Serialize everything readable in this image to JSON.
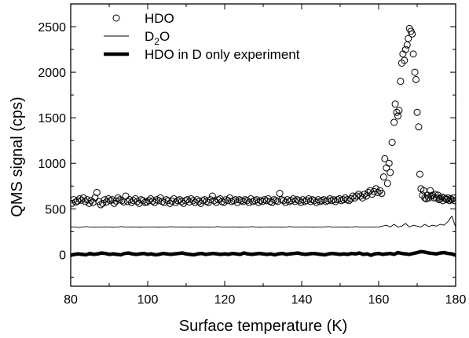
{
  "chart_data": {
    "type": "scatter",
    "xlabel": "Surface temperature (K)",
    "ylabel": "QMS signal (cps)",
    "xlim": [
      80,
      180
    ],
    "ylim": [
      -350,
      2750
    ],
    "xticks": [
      80,
      100,
      120,
      140,
      160,
      180
    ],
    "yticks": [
      0,
      500,
      1000,
      1500,
      2000,
      2500
    ],
    "grid": false,
    "legend_position": "top-left",
    "series": [
      {
        "name": "HDO",
        "name_html_parts": [
          "HDO"
        ],
        "style": "open-circles",
        "points": [
          [
            80.3,
            560
          ],
          [
            80.8,
            600
          ],
          [
            81.3,
            575
          ],
          [
            81.8,
            585
          ],
          [
            82.3,
            610
          ],
          [
            82.8,
            595
          ],
          [
            83.3,
            620
          ],
          [
            83.8,
            580
          ],
          [
            84.3,
            600
          ],
          [
            84.8,
            560
          ],
          [
            85.3,
            590
          ],
          [
            85.8,
            570
          ],
          [
            86.3,
            620
          ],
          [
            86.8,
            680
          ],
          [
            87.3,
            580
          ],
          [
            87.8,
            545
          ],
          [
            88.3,
            560
          ],
          [
            88.8,
            600
          ],
          [
            89.3,
            575
          ],
          [
            89.8,
            610
          ],
          [
            90.3,
            590
          ],
          [
            90.8,
            600
          ],
          [
            91.3,
            560
          ],
          [
            91.8,
            585
          ],
          [
            92.3,
            620
          ],
          [
            92.8,
            600
          ],
          [
            93.3,
            590
          ],
          [
            93.8,
            575
          ],
          [
            94.3,
            640
          ],
          [
            94.8,
            580
          ],
          [
            95.3,
            600
          ],
          [
            95.8,
            570
          ],
          [
            96.3,
            590
          ],
          [
            96.8,
            610
          ],
          [
            97.3,
            580
          ],
          [
            97.8,
            560
          ],
          [
            98.3,
            600
          ],
          [
            98.8,
            590
          ],
          [
            99.3,
            570
          ],
          [
            99.8,
            575
          ],
          [
            100.3,
            590
          ],
          [
            100.8,
            610
          ],
          [
            101.3,
            585
          ],
          [
            101.8,
            570
          ],
          [
            102.3,
            600
          ],
          [
            102.8,
            590
          ],
          [
            103.3,
            620
          ],
          [
            103.8,
            580
          ],
          [
            104.3,
            570
          ],
          [
            104.8,
            600
          ],
          [
            105.3,
            590
          ],
          [
            105.8,
            560
          ],
          [
            106.3,
            585
          ],
          [
            106.8,
            610
          ],
          [
            107.3,
            570
          ],
          [
            107.8,
            590
          ],
          [
            108.3,
            600
          ],
          [
            108.8,
            580
          ],
          [
            109.3,
            560
          ],
          [
            109.8,
            590
          ],
          [
            110.3,
            600
          ],
          [
            110.8,
            575
          ],
          [
            111.3,
            610
          ],
          [
            111.8,
            590
          ],
          [
            112.3,
            570
          ],
          [
            112.8,
            600
          ],
          [
            113.3,
            580
          ],
          [
            113.8,
            560
          ],
          [
            114.3,
            590
          ],
          [
            114.8,
            600
          ],
          [
            115.3,
            580
          ],
          [
            115.8,
            570
          ],
          [
            116.3,
            600
          ],
          [
            116.8,
            640
          ],
          [
            117.3,
            590
          ],
          [
            117.8,
            570
          ],
          [
            118.3,
            600
          ],
          [
            118.8,
            610
          ],
          [
            119.3,
            580
          ],
          [
            119.8,
            570
          ],
          [
            120.3,
            600
          ],
          [
            120.8,
            590
          ],
          [
            121.3,
            620
          ],
          [
            121.8,
            580
          ],
          [
            122.3,
            590
          ],
          [
            122.8,
            600
          ],
          [
            123.3,
            570
          ],
          [
            123.8,
            600
          ],
          [
            124.3,
            590
          ],
          [
            124.8,
            580
          ],
          [
            125.3,
            600
          ],
          [
            125.8,
            590
          ],
          [
            126.3,
            570
          ],
          [
            126.8,
            610
          ],
          [
            127.3,
            580
          ],
          [
            127.8,
            590
          ],
          [
            128.3,
            600
          ],
          [
            128.8,
            570
          ],
          [
            129.3,
            590
          ],
          [
            129.8,
            580
          ],
          [
            130.3,
            600
          ],
          [
            130.8,
            590
          ],
          [
            131.3,
            610
          ],
          [
            131.8,
            580
          ],
          [
            132.3,
            570
          ],
          [
            132.8,
            600
          ],
          [
            133.3,
            590
          ],
          [
            133.8,
            580
          ],
          [
            134.3,
            670
          ],
          [
            134.8,
            600
          ],
          [
            135.3,
            590
          ],
          [
            135.8,
            570
          ],
          [
            136.3,
            600
          ],
          [
            136.8,
            580
          ],
          [
            137.3,
            590
          ],
          [
            137.8,
            610
          ],
          [
            138.3,
            580
          ],
          [
            138.8,
            600
          ],
          [
            139.3,
            590
          ],
          [
            139.8,
            570
          ],
          [
            140.3,
            600
          ],
          [
            140.8,
            580
          ],
          [
            141.3,
            590
          ],
          [
            141.8,
            610
          ],
          [
            142.3,
            580
          ],
          [
            142.8,
            600
          ],
          [
            143.3,
            590
          ],
          [
            143.8,
            570
          ],
          [
            144.3,
            600
          ],
          [
            144.8,
            580
          ],
          [
            145.3,
            590
          ],
          [
            145.8,
            600
          ],
          [
            146.3,
            580
          ],
          [
            146.8,
            590
          ],
          [
            147.3,
            610
          ],
          [
            147.8,
            590
          ],
          [
            148.3,
            600
          ],
          [
            148.8,
            580
          ],
          [
            149.3,
            600
          ],
          [
            149.8,
            610
          ],
          [
            150.3,
            590
          ],
          [
            150.8,
            600
          ],
          [
            151.3,
            620
          ],
          [
            151.8,
            600
          ],
          [
            152.3,
            590
          ],
          [
            152.8,
            610
          ],
          [
            153.3,
            640
          ],
          [
            153.8,
            620
          ],
          [
            154.3,
            640
          ],
          [
            154.8,
            660
          ],
          [
            155.3,
            640
          ],
          [
            155.8,
            620
          ],
          [
            156.3,
            660
          ],
          [
            156.8,
            640
          ],
          [
            157.3,
            680
          ],
          [
            157.8,
            700
          ],
          [
            158.3,
            660
          ],
          [
            158.8,
            690
          ],
          [
            159.3,
            720
          ],
          [
            159.8,
            680
          ],
          [
            160.3,
            700
          ],
          [
            160.8,
            670
          ],
          [
            161.3,
            850
          ],
          [
            161.6,
            1050
          ],
          [
            162.0,
            950
          ],
          [
            162.3,
            780
          ],
          [
            162.7,
            1000
          ],
          [
            163.0,
            900
          ],
          [
            163.5,
            1230
          ],
          [
            164.0,
            1450
          ],
          [
            164.3,
            1650
          ],
          [
            164.7,
            1560
          ],
          [
            165.0,
            1520
          ],
          [
            165.3,
            1580
          ],
          [
            165.7,
            1900
          ],
          [
            166.0,
            2100
          ],
          [
            166.3,
            2200
          ],
          [
            166.7,
            2130
          ],
          [
            167.0,
            2250
          ],
          [
            167.4,
            2300
          ],
          [
            167.7,
            2370
          ],
          [
            168.0,
            2480
          ],
          [
            168.4,
            2450
          ],
          [
            168.7,
            2420
          ],
          [
            169.0,
            2200
          ],
          [
            169.4,
            2000
          ],
          [
            169.7,
            1920
          ],
          [
            170.0,
            1560
          ],
          [
            170.4,
            1400
          ],
          [
            170.7,
            880
          ],
          [
            171.0,
            720
          ],
          [
            171.4,
            650
          ],
          [
            171.7,
            700
          ],
          [
            172.0,
            620
          ],
          [
            172.4,
            610
          ],
          [
            172.7,
            650
          ],
          [
            173.0,
            620
          ],
          [
            173.4,
            700
          ],
          [
            173.7,
            640
          ],
          [
            174.0,
            650
          ],
          [
            174.4,
            620
          ],
          [
            174.7,
            660
          ],
          [
            175.0,
            620
          ],
          [
            175.4,
            650
          ],
          [
            175.7,
            600
          ],
          [
            176.0,
            610
          ],
          [
            176.4,
            630
          ],
          [
            176.7,
            590
          ],
          [
            177.0,
            620
          ],
          [
            177.4,
            610
          ],
          [
            177.7,
            600
          ],
          [
            178.0,
            620
          ],
          [
            178.4,
            590
          ],
          [
            178.7,
            610
          ],
          [
            179.0,
            600
          ],
          [
            179.4,
            620
          ],
          [
            179.7,
            590
          ]
        ]
      },
      {
        "name": "D2O",
        "name_html_parts": [
          "D",
          "2",
          "O"
        ],
        "style": "thin-line",
        "x_start": 80,
        "x_step": 1,
        "values": [
          300,
          300,
          295,
          300,
          305,
          300,
          298,
          300,
          300,
          302,
          300,
          298,
          300,
          305,
          300,
          300,
          302,
          300,
          298,
          300,
          300,
          300,
          302,
          298,
          300,
          300,
          305,
          300,
          300,
          302,
          300,
          298,
          300,
          300,
          302,
          300,
          298,
          300,
          305,
          300,
          300,
          300,
          302,
          300,
          298,
          300,
          300,
          305,
          300,
          298,
          300,
          300,
          302,
          300,
          300,
          298,
          300,
          305,
          300,
          300,
          300,
          302,
          300,
          298,
          300,
          300,
          302,
          305,
          300,
          300,
          300,
          302,
          298,
          300,
          305,
          300,
          300,
          300,
          302,
          300,
          300,
          310,
          320,
          300,
          330,
          300,
          310,
          340,
          300,
          320,
          310,
          300,
          330,
          305,
          320,
          310,
          330,
          320,
          360,
          420,
          300,
          350,
          320,
          400,
          550,
          310,
          520,
          420,
          300,
          480,
          350,
          320,
          280,
          310,
          300,
          290,
          300,
          310,
          295,
          300,
          300,
          302,
          300,
          298,
          300,
          300,
          305,
          300,
          300,
          302,
          300,
          298,
          300,
          300,
          302,
          300,
          298,
          300,
          305,
          300,
          300
        ]
      },
      {
        "name": "HDO in D only experiment",
        "name_html_parts": [
          "HDO in D only experiment"
        ],
        "style": "thick-line",
        "x_start": 80,
        "x_step": 1,
        "values": [
          -10,
          0,
          5,
          0,
          -5,
          10,
          0,
          5,
          15,
          10,
          0,
          5,
          0,
          -5,
          10,
          15,
          5,
          0,
          5,
          10,
          0,
          5,
          -5,
          0,
          10,
          5,
          0,
          5,
          10,
          15,
          5,
          0,
          -5,
          5,
          10,
          0,
          5,
          10,
          5,
          0,
          5,
          0,
          10,
          5,
          0,
          15,
          5,
          0,
          5,
          10,
          5,
          0,
          5,
          -5,
          5,
          10,
          0,
          5,
          10,
          15,
          5,
          0,
          5,
          10,
          5,
          0,
          -5,
          5,
          10,
          5,
          0,
          5,
          0,
          10,
          5,
          15,
          0,
          5,
          -10,
          5,
          10,
          0,
          5,
          10,
          0,
          20,
          10,
          5,
          0,
          10,
          20,
          30,
          25,
          15,
          10,
          5,
          15,
          20,
          10,
          5,
          -10,
          -20,
          0,
          10,
          -20,
          40,
          -10,
          -30,
          -20,
          -10,
          10,
          20,
          10,
          0,
          20,
          10,
          0,
          -10,
          -50,
          10,
          40,
          -40,
          0,
          10,
          20,
          0,
          5,
          10,
          20,
          15,
          10,
          5,
          10,
          20,
          15,
          10,
          20,
          30,
          25,
          20,
          30
        ]
      }
    ]
  }
}
